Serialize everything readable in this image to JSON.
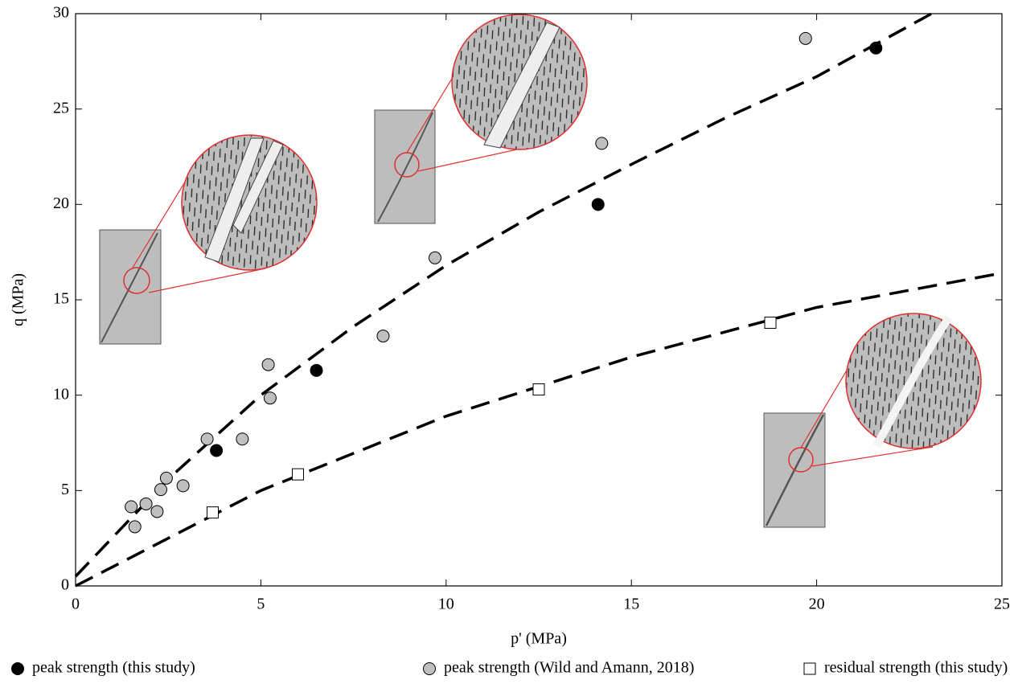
{
  "chart_data": {
    "type": "scatter",
    "x_label": "p' (MPa)",
    "y_label": "q (MPa)",
    "xlim": [
      0,
      25
    ],
    "ylim": [
      0,
      30
    ],
    "xticks": [
      0,
      5,
      10,
      15,
      20,
      25
    ],
    "yticks": [
      0,
      5,
      10,
      15,
      20,
      25,
      30
    ],
    "series": [
      {
        "name": "peak strength (this study)",
        "color": "#000000",
        "marker": "circle",
        "x": [
          3.8,
          6.5,
          14.1,
          21.6
        ],
        "values": [
          7.1,
          11.3,
          20.0,
          28.2
        ]
      },
      {
        "name": "peak strength (Wild and Amann, 2018)",
        "color": "#bfbfbf",
        "marker": "circle",
        "x": [
          1.5,
          1.6,
          1.9,
          2.2,
          2.3,
          2.45,
          2.9,
          3.55,
          4.5,
          5.2,
          5.25,
          8.3,
          9.7,
          14.2,
          19.7
        ],
        "values": [
          4.15,
          3.1,
          4.3,
          3.9,
          5.05,
          5.65,
          5.25,
          7.7,
          7.7,
          11.6,
          9.85,
          13.1,
          17.2,
          23.2,
          28.7
        ]
      },
      {
        "name": "residual strength (this study)",
        "color": "#ffffff",
        "marker": "square",
        "x": [
          3.7,
          6.0,
          12.5,
          18.75
        ],
        "values": [
          3.85,
          5.85,
          10.3,
          13.8
        ]
      }
    ],
    "curves": [
      {
        "x": [
          0,
          2.5,
          5,
          7.5,
          10,
          12.5,
          15,
          17.5,
          20,
          23.1
        ],
        "values": [
          0.5,
          5.6,
          10.0,
          13.6,
          16.8,
          19.6,
          22.1,
          24.5,
          26.7,
          30.0
        ]
      },
      {
        "x": [
          0,
          5,
          10,
          15,
          20,
          25
        ],
        "values": [
          0,
          5.0,
          8.9,
          12.0,
          14.6,
          16.4
        ]
      }
    ]
  }
}
